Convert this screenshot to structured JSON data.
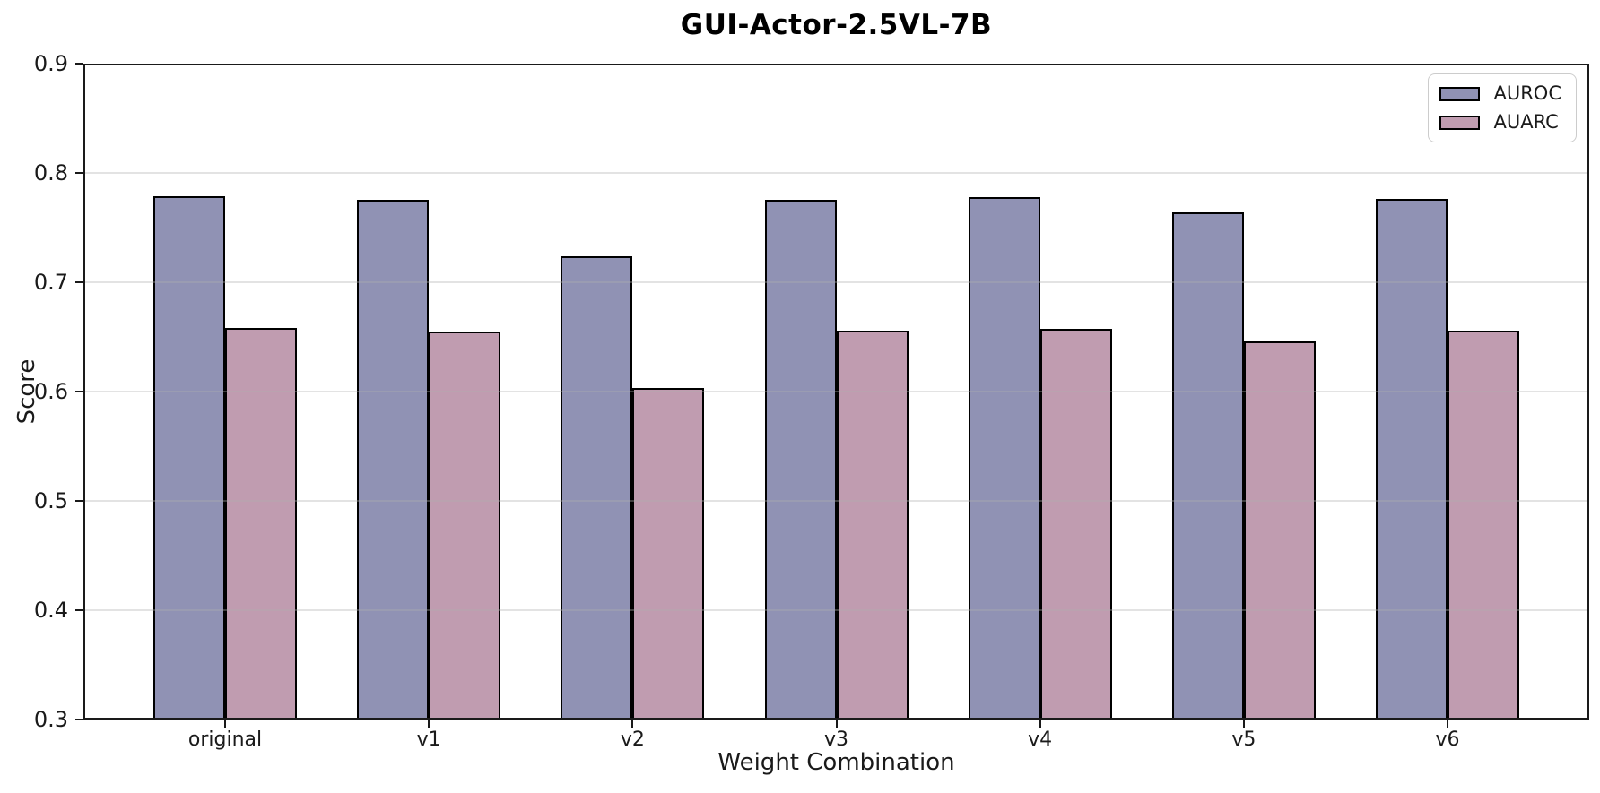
{
  "title": "GUI-Actor-2.5VL-7B",
  "colors": {
    "auroc_fill": "#9092b4",
    "auarc_fill": "#c09cb0",
    "bar_edge": "#000000",
    "grid": "rgba(176,176,176,0.35)",
    "spine": "#1a1a1a",
    "legend_border": "#cccccc",
    "background": "#ffffff"
  },
  "legend": {
    "items": [
      {
        "label": "AUROC"
      },
      {
        "label": "AUARC"
      }
    ]
  },
  "chart_data": {
    "type": "bar",
    "title": "GUI-Actor-2.5VL-7B",
    "xlabel": "Weight Combination",
    "ylabel": "Score",
    "categories": [
      "original",
      "v1",
      "v2",
      "v3",
      "v4",
      "v5",
      "v6"
    ],
    "series": [
      {
        "name": "AUROC",
        "color": "#9092b4",
        "values": [
          0.779,
          0.775,
          0.724,
          0.775,
          0.778,
          0.764,
          0.776
        ]
      },
      {
        "name": "AUARC",
        "color": "#c09cb0",
        "values": [
          0.658,
          0.655,
          0.603,
          0.656,
          0.657,
          0.646,
          0.656
        ]
      }
    ],
    "ylim": [
      0.3,
      0.9
    ],
    "y_ticks": [
      0.3,
      0.4,
      0.5,
      0.6,
      0.7,
      0.8,
      0.9
    ],
    "grid": true,
    "grid_above_bars": true,
    "legend_position": "upper right",
    "bar_width_fraction": 0.35
  }
}
